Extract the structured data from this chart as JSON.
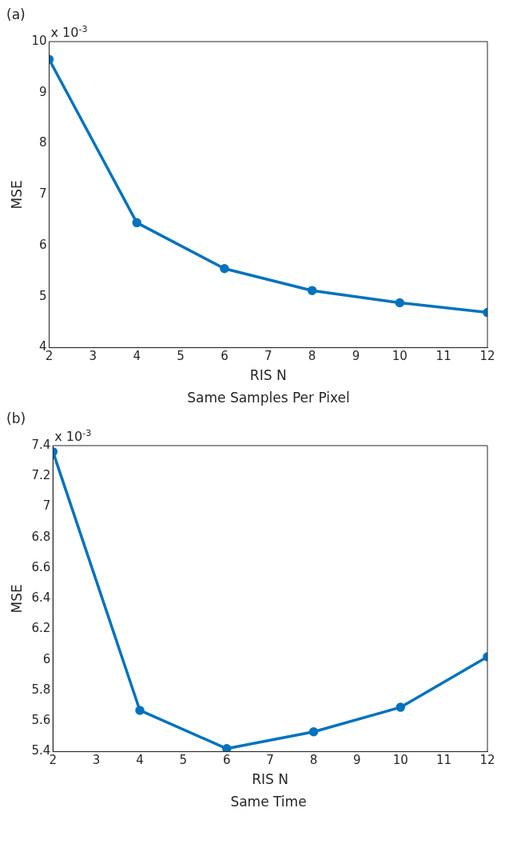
{
  "chart_data": [
    {
      "type": "line",
      "title": "(a)",
      "xlabel": "RIS N",
      "ylabel": "MSE",
      "annotations": [
        "x 10$^{-3}$",
        "Same Samples Per Pixel"
      ],
      "x": [
        2,
        4,
        6,
        8,
        10,
        12
      ],
      "series": [
        {
          "color": "#0072bd",
          "values": [
            9.65,
            6.45,
            5.55,
            5.12,
            4.88,
            4.69
          ]
        }
      ],
      "xlim": [
        2,
        12
      ],
      "xticks": [
        2,
        3,
        4,
        5,
        6,
        7,
        8,
        9,
        10,
        11,
        12
      ],
      "ylim": [
        4,
        10
      ],
      "yticks": [
        4,
        5,
        6,
        7,
        8,
        9,
        10
      ],
      "grid": false,
      "legend": false,
      "marker": "circle",
      "line_style": "solid"
    },
    {
      "type": "line",
      "title": "(b)",
      "xlabel": "RIS N",
      "ylabel": "MSE",
      "annotations": [
        "x 10$^{-3}$",
        "Same Time"
      ],
      "x": [
        2,
        4,
        6,
        8,
        10,
        12
      ],
      "series": [
        {
          "color": "#0072bd",
          "values": [
            7.36,
            5.67,
            5.42,
            5.53,
            5.69,
            6.02
          ]
        }
      ],
      "xlim": [
        2,
        12
      ],
      "xticks": [
        2,
        3,
        4,
        5,
        6,
        7,
        8,
        9,
        10,
        11,
        12
      ],
      "ylim": [
        5.4,
        7.4
      ],
      "yticks": [
        5.4,
        5.6,
        5.8,
        6,
        6.2,
        6.4,
        6.6,
        6.8,
        7,
        7.2,
        7.4
      ],
      "grid": false,
      "legend": false,
      "marker": "circle",
      "line_style": "solid"
    }
  ]
}
